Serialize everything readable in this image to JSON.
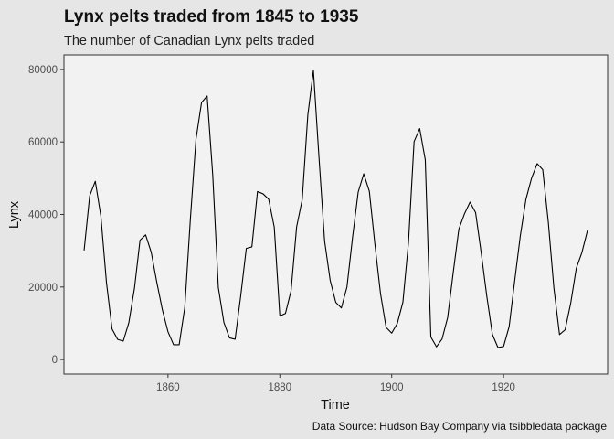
{
  "chart_data": {
    "type": "line",
    "title": "Lynx pelts traded from 1845 to 1935",
    "subtitle": "The number of Canadian Lynx pelts traded",
    "xlabel": "Time",
    "ylabel": "Lynx",
    "caption": "Data Source: Hudson Bay Company via tsibbledata package",
    "xlim": [
      1845,
      1935
    ],
    "ylim": [
      0,
      80000
    ],
    "x_ticks": [
      1860,
      1880,
      1900,
      1920
    ],
    "y_ticks": [
      0,
      20000,
      40000,
      60000,
      80000
    ],
    "grid": false,
    "series": [
      {
        "x": [
          1845,
          1846,
          1847,
          1848,
          1849,
          1850,
          1851,
          1852,
          1853,
          1854,
          1855,
          1856,
          1857,
          1858,
          1859,
          1860,
          1861,
          1862,
          1863,
          1864,
          1865,
          1866,
          1867,
          1868,
          1869,
          1870,
          1871,
          1872,
          1873,
          1874,
          1875,
          1876,
          1877,
          1878,
          1879,
          1880,
          1881,
          1882,
          1883,
          1884,
          1885,
          1886,
          1887,
          1888,
          1889,
          1890,
          1891,
          1892,
          1893,
          1894,
          1895,
          1896,
          1897,
          1898,
          1899,
          1900,
          1901,
          1902,
          1903,
          1904,
          1905,
          1906,
          1907,
          1908,
          1909,
          1910,
          1911,
          1912,
          1913,
          1914,
          1915,
          1916,
          1917,
          1918,
          1919,
          1920,
          1921,
          1922,
          1923,
          1924,
          1925,
          1926,
          1927,
          1928,
          1929,
          1930,
          1931,
          1932,
          1933,
          1934,
          1935
        ],
        "values": [
          30090,
          45150,
          49150,
          39520,
          21230,
          8420,
          5560,
          5080,
          10170,
          19600,
          32910,
          34380,
          29590,
          21300,
          13690,
          7650,
          4080,
          4090,
          14330,
          38640,
          60700,
          70880,
          72660,
          50860,
          19880,
          10190,
          5970,
          5600,
          17520,
          30640,
          31070,
          46330,
          45690,
          44210,
          36520,
          12000,
          12710,
          18930,
          36580,
          44100,
          67360,
          79740,
          55660,
          32700,
          21820,
          15750,
          14220,
          20020,
          33680,
          46140,
          51200,
          46380,
          31700,
          18170,
          8850,
          7280,
          9980,
          15810,
          32340,
          60100,
          63680,
          55060,
          6210,
          3530,
          5650,
          11570,
          24020,
          35940,
          40150,
          43410,
          40500,
          29430,
          17470,
          6940,
          3310,
          3610,
          9100,
          21850,
          34210,
          44210,
          49980,
          54020,
          52360,
          37840,
          19660,
          6880,
          8200,
          15520,
          25160,
          29500,
          35570
        ]
      }
    ]
  }
}
